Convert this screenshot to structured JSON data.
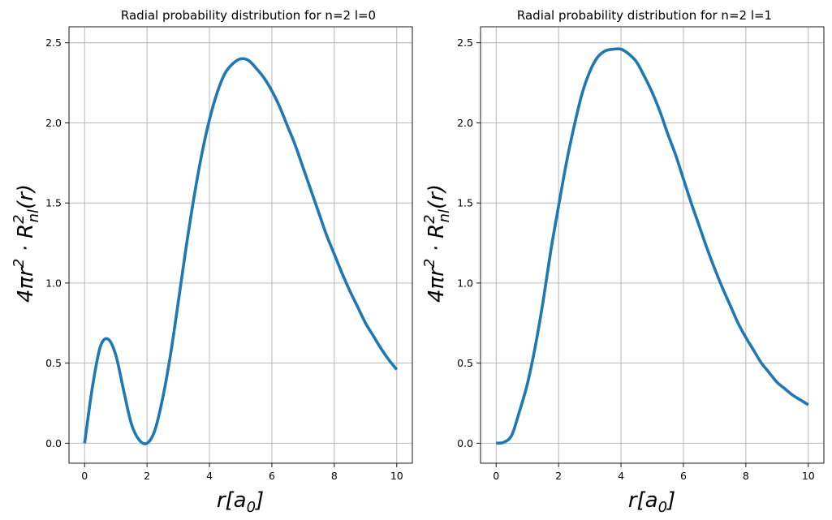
{
  "chart_data": [
    {
      "type": "line",
      "title": "Radial probability distribution for n=2 l=0",
      "xlabel": "r[a₀]",
      "ylabel": "4πr²·R²ₙₗ(r)",
      "xlim": [
        -0.5,
        10.5
      ],
      "ylim": [
        -0.125,
        2.6
      ],
      "xticks": [
        0,
        2,
        4,
        6,
        8,
        10
      ],
      "yticks": [
        0.0,
        0.5,
        1.0,
        1.5,
        2.0,
        2.5
      ],
      "xtick_labels": [
        "0",
        "2",
        "4",
        "6",
        "8",
        "10"
      ],
      "ytick_labels": [
        "0.0",
        "0.5",
        "1.0",
        "1.5",
        "2.0",
        "2.5"
      ],
      "grid": true,
      "series": [
        {
          "color": "#1f77b4",
          "x": [
            0,
            0.25,
            0.5,
            0.75,
            1.0,
            1.25,
            1.5,
            1.75,
            2.0,
            2.25,
            2.5,
            2.75,
            3.0,
            3.25,
            3.5,
            3.75,
            4.0,
            4.25,
            4.5,
            4.75,
            5.0,
            5.25,
            5.5,
            5.75,
            6.0,
            6.25,
            6.5,
            6.75,
            7.0,
            7.25,
            7.5,
            7.75,
            8.0,
            8.25,
            8.5,
            8.75,
            9.0,
            9.25,
            9.5,
            9.75,
            10.0
          ],
          "y": [
            0.0,
            0.35,
            0.6,
            0.65,
            0.55,
            0.33,
            0.12,
            0.02,
            0.0,
            0.08,
            0.28,
            0.55,
            0.88,
            1.22,
            1.53,
            1.8,
            2.02,
            2.19,
            2.31,
            2.37,
            2.4,
            2.39,
            2.34,
            2.28,
            2.2,
            2.1,
            1.98,
            1.86,
            1.72,
            1.58,
            1.44,
            1.3,
            1.18,
            1.06,
            0.95,
            0.85,
            0.75,
            0.67,
            0.59,
            0.52,
            0.46
          ]
        }
      ]
    },
    {
      "type": "line",
      "title": "Radial probability distribution for n=2 l=1",
      "xlabel": "r[a₀]",
      "ylabel": "4πr²·R²ₙₗ(r)",
      "xlim": [
        -0.5,
        10.5
      ],
      "ylim": [
        -0.125,
        2.6
      ],
      "xticks": [
        0,
        2,
        4,
        6,
        8,
        10
      ],
      "yticks": [
        0.0,
        0.5,
        1.0,
        1.5,
        2.0,
        2.5
      ],
      "xtick_labels": [
        "0",
        "2",
        "4",
        "6",
        "8",
        "10"
      ],
      "ytick_labels": [
        "0.0",
        "0.5",
        "1.0",
        "1.5",
        "2.0",
        "2.5"
      ],
      "grid": true,
      "series": [
        {
          "color": "#1f77b4",
          "x": [
            0,
            0.25,
            0.5,
            0.75,
            1.0,
            1.25,
            1.5,
            1.75,
            2.0,
            2.25,
            2.5,
            2.75,
            3.0,
            3.25,
            3.5,
            3.75,
            4.0,
            4.25,
            4.5,
            4.75,
            5.0,
            5.25,
            5.5,
            5.75,
            6.0,
            6.25,
            6.5,
            6.75,
            7.0,
            7.25,
            7.5,
            7.75,
            8.0,
            8.25,
            8.5,
            8.75,
            9.0,
            9.25,
            9.5,
            9.75,
            10.0
          ],
          "y": [
            0.0,
            0.006,
            0.05,
            0.2,
            0.37,
            0.6,
            0.88,
            1.2,
            1.48,
            1.75,
            1.98,
            2.18,
            2.32,
            2.41,
            2.45,
            2.46,
            2.46,
            2.43,
            2.38,
            2.29,
            2.19,
            2.07,
            1.93,
            1.8,
            1.65,
            1.5,
            1.36,
            1.22,
            1.09,
            0.97,
            0.86,
            0.75,
            0.66,
            0.58,
            0.5,
            0.44,
            0.38,
            0.34,
            0.3,
            0.27,
            0.24
          ]
        }
      ]
    }
  ]
}
